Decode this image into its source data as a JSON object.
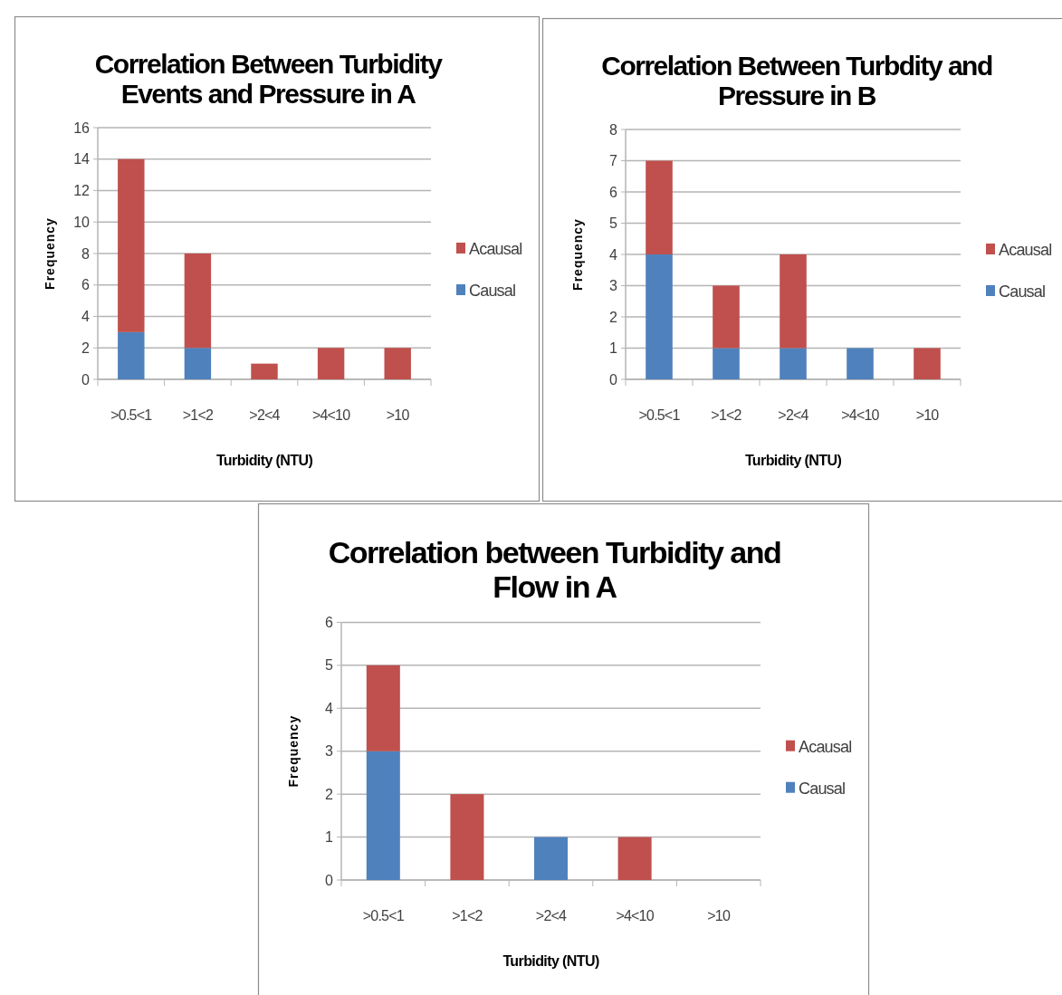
{
  "chart_data": [
    {
      "type": "bar",
      "title": "Correlation Between Turbidity Events and Pressure in A",
      "xlabel": "Turbidity (NTU)",
      "ylabel": "Frequency",
      "categories": [
        ">0.5<1",
        ">1<2",
        ">2<4",
        ">4<10",
        ">10"
      ],
      "stacked": true,
      "ylim": [
        0,
        16
      ],
      "yticks": [
        0,
        2,
        4,
        6,
        8,
        10,
        12,
        14,
        16
      ],
      "grid": "y",
      "legend": "right",
      "series": [
        {
          "name": "Causal",
          "color": "#4f81bd",
          "values": [
            3,
            2,
            0,
            0,
            0
          ]
        },
        {
          "name": "Acausal",
          "color": "#c0504d",
          "values": [
            11,
            6,
            1,
            2,
            2
          ]
        }
      ]
    },
    {
      "type": "bar",
      "title": "Correlation Between Turbdity and Pressure in B",
      "xlabel": "Turbidity (NTU)",
      "ylabel": "Frequency",
      "categories": [
        ">0.5<1",
        ">1<2",
        ">2<4",
        ">4<10",
        ">10"
      ],
      "stacked": true,
      "ylim": [
        0,
        8
      ],
      "yticks": [
        0,
        1,
        2,
        3,
        4,
        5,
        6,
        7,
        8
      ],
      "grid": "y",
      "legend": "right",
      "series": [
        {
          "name": "Causal",
          "color": "#4f81bd",
          "values": [
            4,
            1,
            1,
            1,
            0
          ]
        },
        {
          "name": "Acausal",
          "color": "#c0504d",
          "values": [
            3,
            2,
            3,
            0,
            1
          ]
        }
      ]
    },
    {
      "type": "bar",
      "title": "Correlation between Turbidity and Flow in A",
      "xlabel": "Turbidity (NTU)",
      "ylabel": "Frequency",
      "categories": [
        ">0.5<1",
        ">1<2",
        ">2<4",
        ">4<10",
        ">10"
      ],
      "stacked": true,
      "ylim": [
        0,
        6
      ],
      "yticks": [
        0,
        1,
        2,
        3,
        4,
        5,
        6
      ],
      "grid": "y",
      "legend": "right",
      "series": [
        {
          "name": "Causal",
          "color": "#4f81bd",
          "values": [
            3,
            0,
            1,
            0,
            0
          ]
        },
        {
          "name": "Acausal",
          "color": "#c0504d",
          "values": [
            2,
            2,
            0,
            1,
            0
          ]
        }
      ]
    }
  ]
}
